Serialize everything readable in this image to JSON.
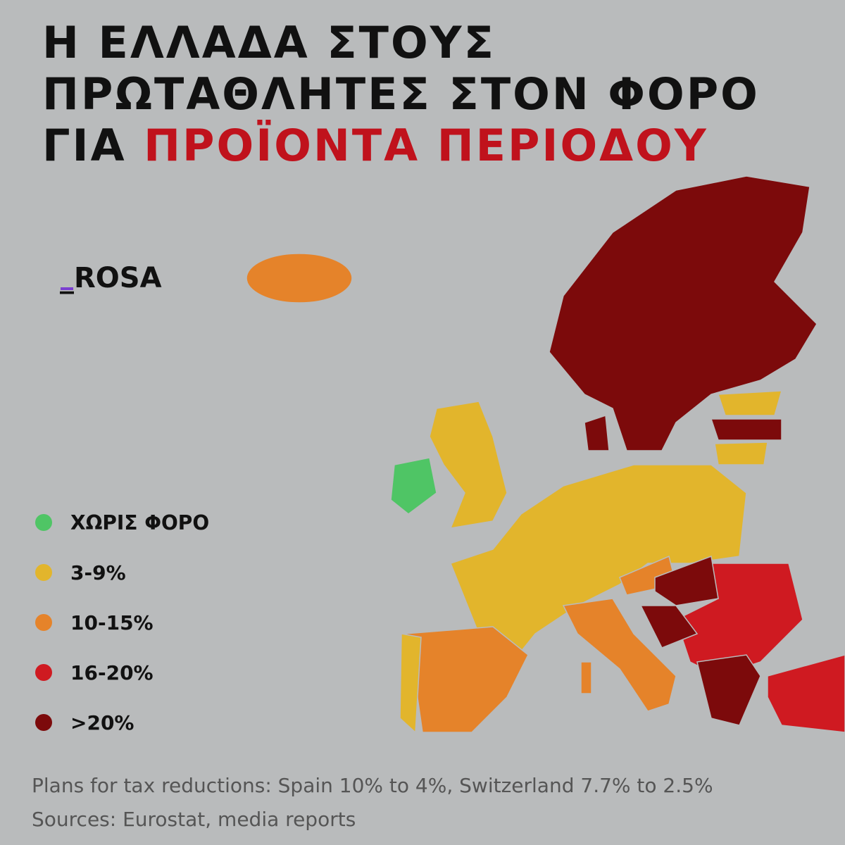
{
  "header": {
    "title_lines": [
      "Η ΕΛΛΑΔΑ ΣΤΟΥΣ",
      "ΠΡΩΤΑΘΛΗΤΕΣ ΣΤΟΝ ΦΟΡΟ"
    ],
    "title_prefix": "ΓΙΑ",
    "title_highlight": "ΠΡΟΪΟΝΤΑ ΠΕΡΙΟΔΟΥ",
    "highlight_color": "#c0121c"
  },
  "logo": "_ROSA",
  "legend": [
    {
      "label": "ΧΩΡΙΣ ΦΟΡΟ",
      "color": "#4fc565"
    },
    {
      "label": "3-9%",
      "color": "#e2b52c"
    },
    {
      "label": "10-15%",
      "color": "#e5832a"
    },
    {
      "label": "16-20%",
      "color": "#cf1a21"
    },
    {
      "label": ">20%",
      "color": "#7c0a0b"
    }
  ],
  "footer": [
    "Plans for tax reductions: Spain 10% to 4%, Switzerland 7.7% to 2.5%",
    "Sources: Eurostat, media reports"
  ]
}
